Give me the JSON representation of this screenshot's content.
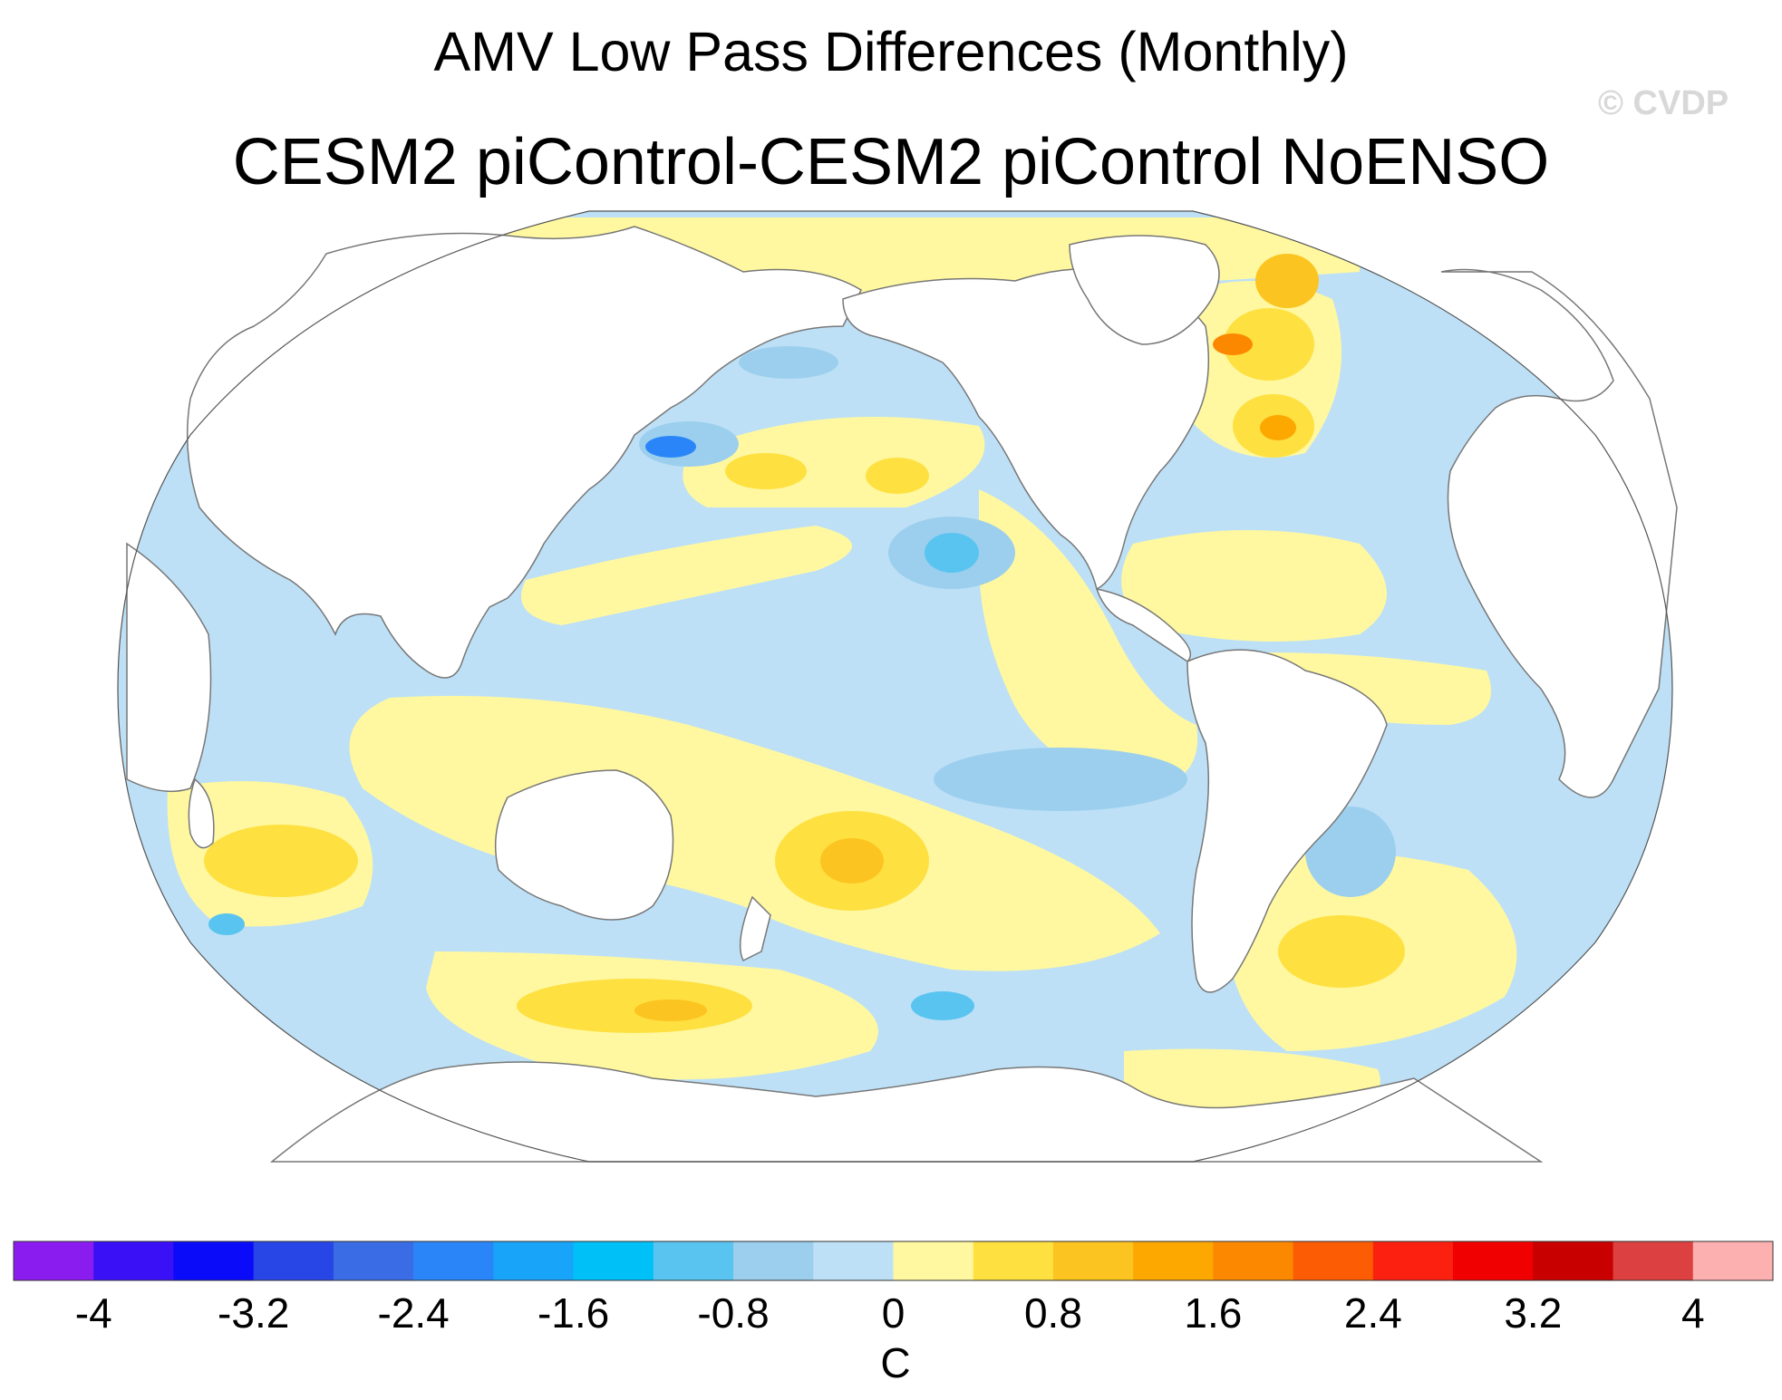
{
  "title": "AMV Low Pass Differences (Monthly)",
  "subtitle": "CESM2 piControl-CESM2 piControl NoENSO",
  "watermark": "© CVDP",
  "colorbar": {
    "colors": [
      "#8a1cf0",
      "#3a10f6",
      "#0a0bf8",
      "#2846e6",
      "#3a6ce6",
      "#2a86f8",
      "#18a4f8",
      "#00c0f8",
      "#5ac4f0",
      "#9ccfee",
      "#bde0f6",
      "#fff8a0",
      "#fee040",
      "#fcc420",
      "#fca800",
      "#fc8800",
      "#fc5c04",
      "#fc2010",
      "#f00000",
      "#c80000",
      "#dc4040",
      "#fcb0b0"
    ],
    "tick_labels": [
      "-4",
      "-3.2",
      "-2.4",
      "-1.6",
      "-0.8",
      "0",
      "0.8",
      "1.6",
      "2.4",
      "3.2",
      "4"
    ],
    "unit_label": "C"
  },
  "map": {
    "projection": "Robinson",
    "ocean_base_color": "#bde0f6",
    "land_color": "#ffffff",
    "coast_color": "#777777"
  }
}
